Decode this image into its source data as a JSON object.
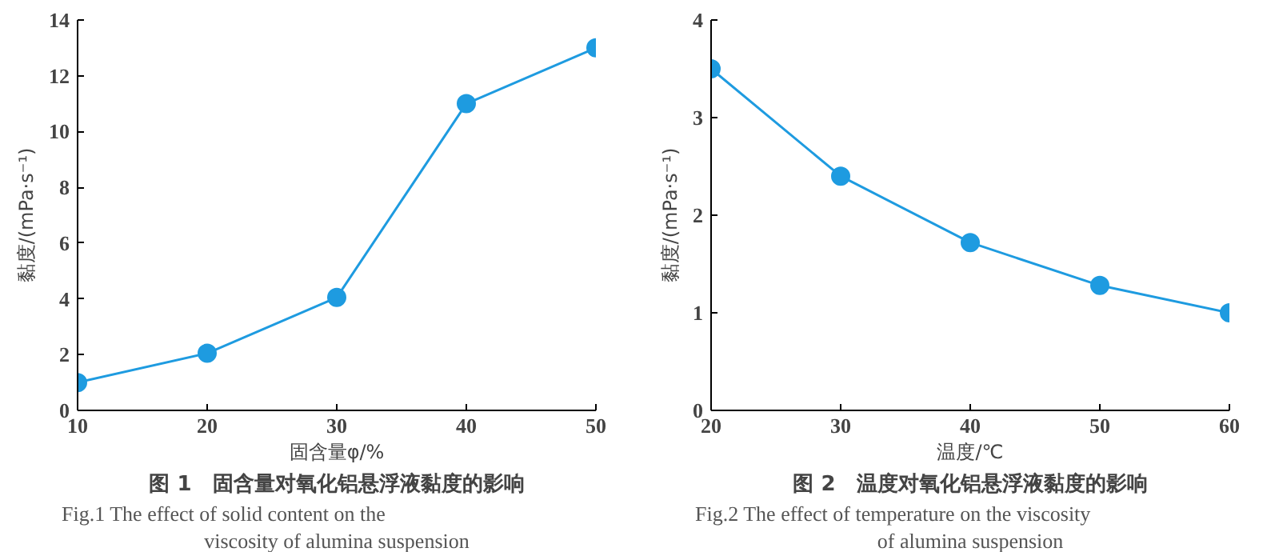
{
  "chart_data": [
    {
      "type": "line",
      "title": "图 1　固含量对氧化铝悬浮液黏度的影响",
      "subtitle": "Fig.1 The effect of solid content on the viscosity of alumina suspension",
      "xlabel": "固含量φ/%",
      "ylabel": "黏度/(mPa·s⁻¹)",
      "x": [
        10,
        20,
        30,
        40,
        50
      ],
      "xlim": [
        10,
        50
      ],
      "xticks": [
        10,
        20,
        30,
        40,
        50
      ],
      "ylim": [
        0,
        14
      ],
      "yticks": [
        0,
        2,
        4,
        6,
        8,
        10,
        12,
        14
      ],
      "grid": false,
      "marker": "circle",
      "line_style": "solid",
      "series": [
        {
          "color": "#1e9be0",
          "values": [
            1.0,
            2.05,
            4.05,
            11.0,
            13.0
          ]
        }
      ]
    },
    {
      "type": "line",
      "title": "图 2　温度对氧化铝悬浮液黏度的影响",
      "subtitle": "Fig.2 The effect of temperature on the viscosity of alumina suspension",
      "xlabel": "温度/℃",
      "ylabel": "黏度/(mPa·s⁻¹)",
      "x": [
        20,
        30,
        40,
        50,
        60
      ],
      "xlim": [
        20,
        60
      ],
      "xticks": [
        20,
        30,
        40,
        50,
        60
      ],
      "ylim": [
        0,
        4
      ],
      "yticks": [
        0,
        1,
        2,
        3,
        4
      ],
      "grid": false,
      "marker": "circle",
      "line_style": "solid",
      "series": [
        {
          "color": "#1e9be0",
          "values": [
            3.5,
            2.4,
            1.72,
            1.28,
            1.0
          ]
        }
      ]
    }
  ]
}
